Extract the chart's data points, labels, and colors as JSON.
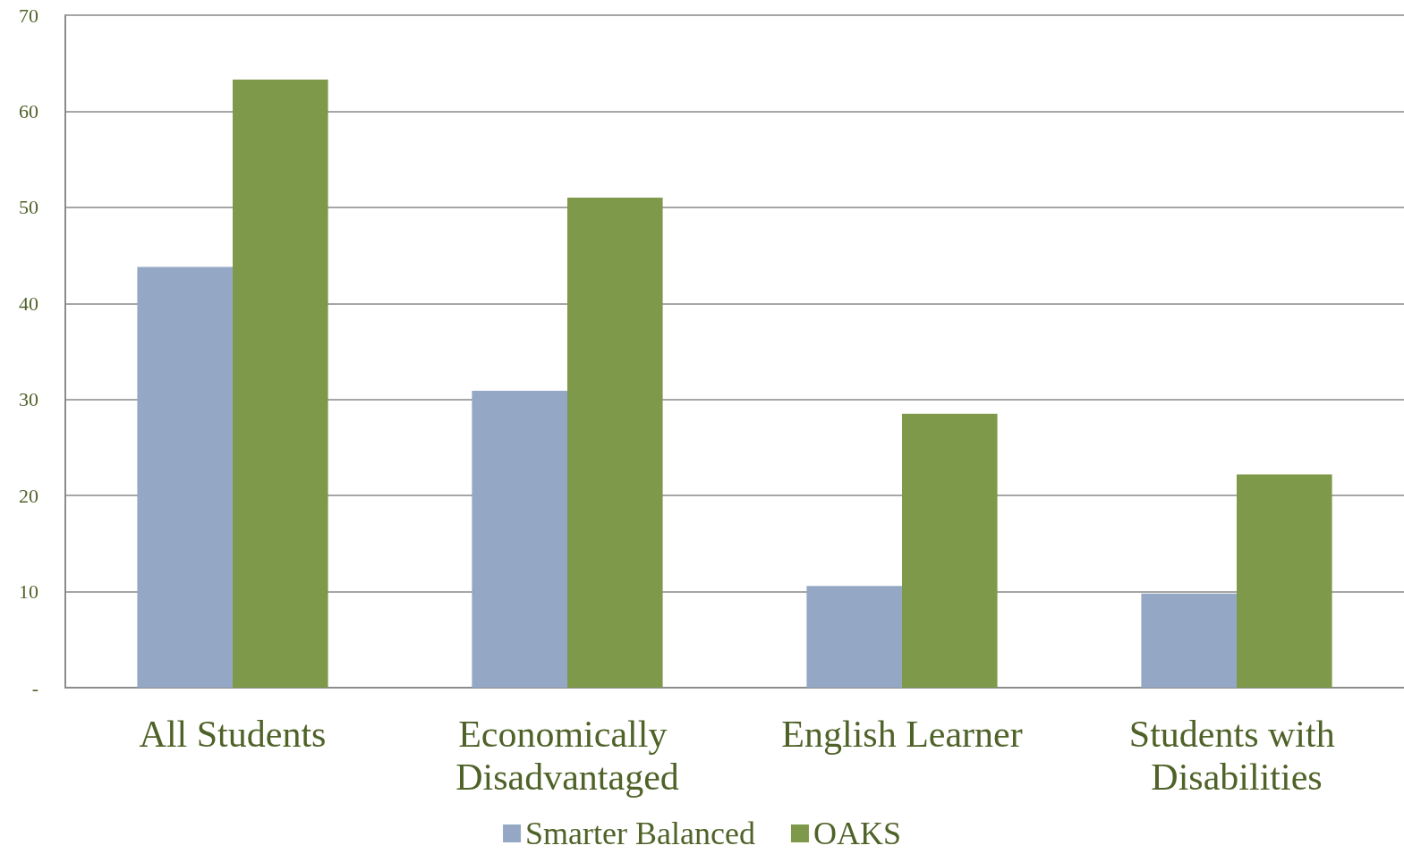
{
  "chart_data": {
    "type": "bar",
    "categories": [
      "All Students",
      "Economically Disadvantaged",
      "English Learner",
      "Students with Disabilities"
    ],
    "series": [
      {
        "name": "Smarter Balanced",
        "color": "#94a8c6",
        "values": [
          43.8,
          30.9,
          10.6,
          9.8
        ]
      },
      {
        "name": "OAKS",
        "color": "#7e994a",
        "values": [
          63.3,
          51.0,
          28.5,
          22.2
        ]
      }
    ],
    "ylim": [
      0,
      70
    ],
    "yticks": [
      {
        "value": 0,
        "label": "-"
      },
      10,
      20,
      30,
      40,
      50,
      60,
      70
    ],
    "grid": "y",
    "legend": "bottom"
  }
}
